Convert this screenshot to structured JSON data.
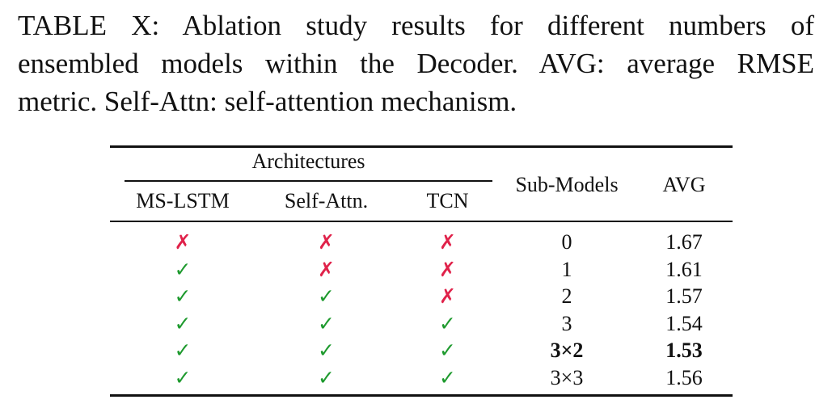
{
  "caption": {
    "lines": [
      "TABLE X: Ablation study results for different numbers of",
      "ensembled models within the Decoder. AVG: average RMSE",
      "metric. Self-Attn: self-attention mechanism."
    ]
  },
  "table": {
    "group_header": "Architectures",
    "columns": [
      "MS-LSTM",
      "Self-Attn.",
      "TCN",
      "Sub-Models",
      "AVG"
    ],
    "symbols": {
      "yes": "✓",
      "no": "✗"
    },
    "rows": [
      {
        "ms_lstm": "no",
        "self_attn": "no",
        "tcn": "no",
        "sub_models": "0",
        "avg": "1.67",
        "bold": false
      },
      {
        "ms_lstm": "yes",
        "self_attn": "no",
        "tcn": "no",
        "sub_models": "1",
        "avg": "1.61",
        "bold": false
      },
      {
        "ms_lstm": "yes",
        "self_attn": "yes",
        "tcn": "no",
        "sub_models": "2",
        "avg": "1.57",
        "bold": false
      },
      {
        "ms_lstm": "yes",
        "self_attn": "yes",
        "tcn": "yes",
        "sub_models": "3",
        "avg": "1.54",
        "bold": false
      },
      {
        "ms_lstm": "yes",
        "self_attn": "yes",
        "tcn": "yes",
        "sub_models": "3×2",
        "avg": "1.53",
        "bold": true
      },
      {
        "ms_lstm": "yes",
        "self_attn": "yes",
        "tcn": "yes",
        "sub_models": "3×3",
        "avg": "1.56",
        "bold": false
      }
    ]
  },
  "colors": {
    "check": "#1e9a2e",
    "cross": "#e0224a",
    "text": "#111111"
  }
}
